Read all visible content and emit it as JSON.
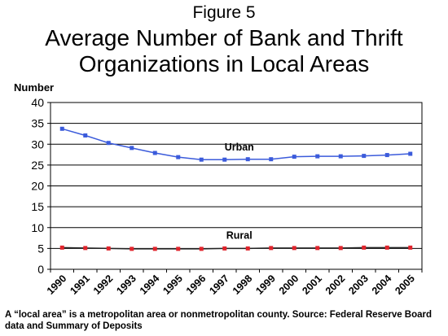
{
  "figure_label": "Figure 5",
  "title_lines": [
    "Average Number of Bank and Thrift",
    "Organizations in Local Areas"
  ],
  "note": "A “local area” is a metropolitan area or nonmetropolitan county.  Source: Federal Reserve Board data and Summary of Deposits",
  "colors": {
    "urban": "#3b5bdb",
    "rural": "#e0242c",
    "rural_line": "#222222"
  },
  "chart_data": {
    "type": "line",
    "title": "Average Number of Bank and Thrift Organizations in Local Areas",
    "ylabel": "Number",
    "xlabel": "",
    "categories": [
      "1990",
      "1991",
      "1992",
      "1993",
      "1994",
      "1995",
      "1996",
      "1997",
      "1998",
      "1999",
      "2000",
      "2001",
      "2002",
      "2003",
      "2004",
      "2005"
    ],
    "ylim": [
      0,
      40
    ],
    "yticks": [
      0,
      5,
      10,
      15,
      20,
      25,
      30,
      35,
      40
    ],
    "grid": "horizontal",
    "legend": "none",
    "series": [
      {
        "name": "Urban",
        "values": [
          33.7,
          32.1,
          30.3,
          29.1,
          27.9,
          26.9,
          26.3,
          26.3,
          26.4,
          26.4,
          27.0,
          27.1,
          27.1,
          27.2,
          27.4,
          27.7
        ]
      },
      {
        "name": "Rural",
        "values": [
          5.2,
          5.1,
          5.0,
          4.9,
          4.9,
          4.9,
          4.9,
          5.0,
          5.0,
          5.1,
          5.1,
          5.1,
          5.1,
          5.2,
          5.2,
          5.2
        ]
      }
    ]
  }
}
